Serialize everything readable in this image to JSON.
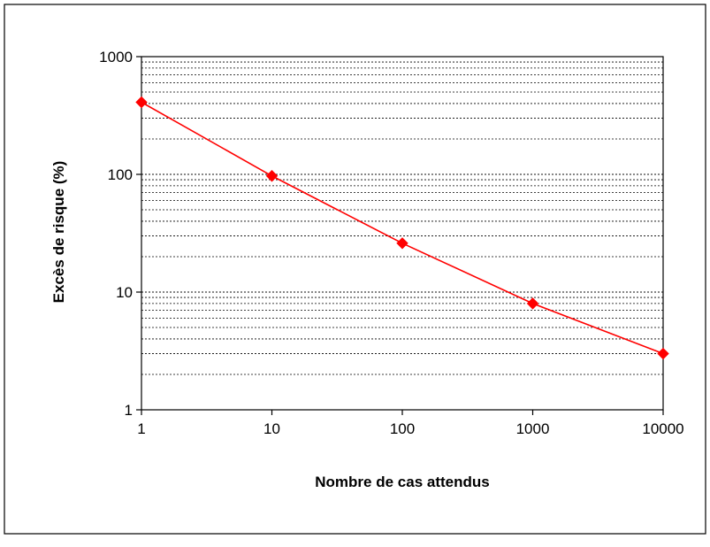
{
  "chart_data": {
    "type": "line",
    "title": "",
    "xlabel": "Nombre de cas attendus",
    "ylabel": "Excès de risque (%)",
    "x_scale": "log",
    "y_scale": "log",
    "xlim": [
      1,
      10000
    ],
    "ylim": [
      1,
      1000
    ],
    "x_ticks": [
      "1",
      "10",
      "100",
      "1000",
      "10000"
    ],
    "y_ticks": [
      "1",
      "10",
      "100",
      "1000"
    ],
    "grid": "horizontal dashed at minor log divisions",
    "legend": "none",
    "series": [
      {
        "color": "#ff0000",
        "marker": "diamond",
        "x": [
          1,
          10,
          100,
          1000,
          10000
        ],
        "values": [
          410,
          97,
          26,
          8,
          3
        ]
      }
    ]
  }
}
